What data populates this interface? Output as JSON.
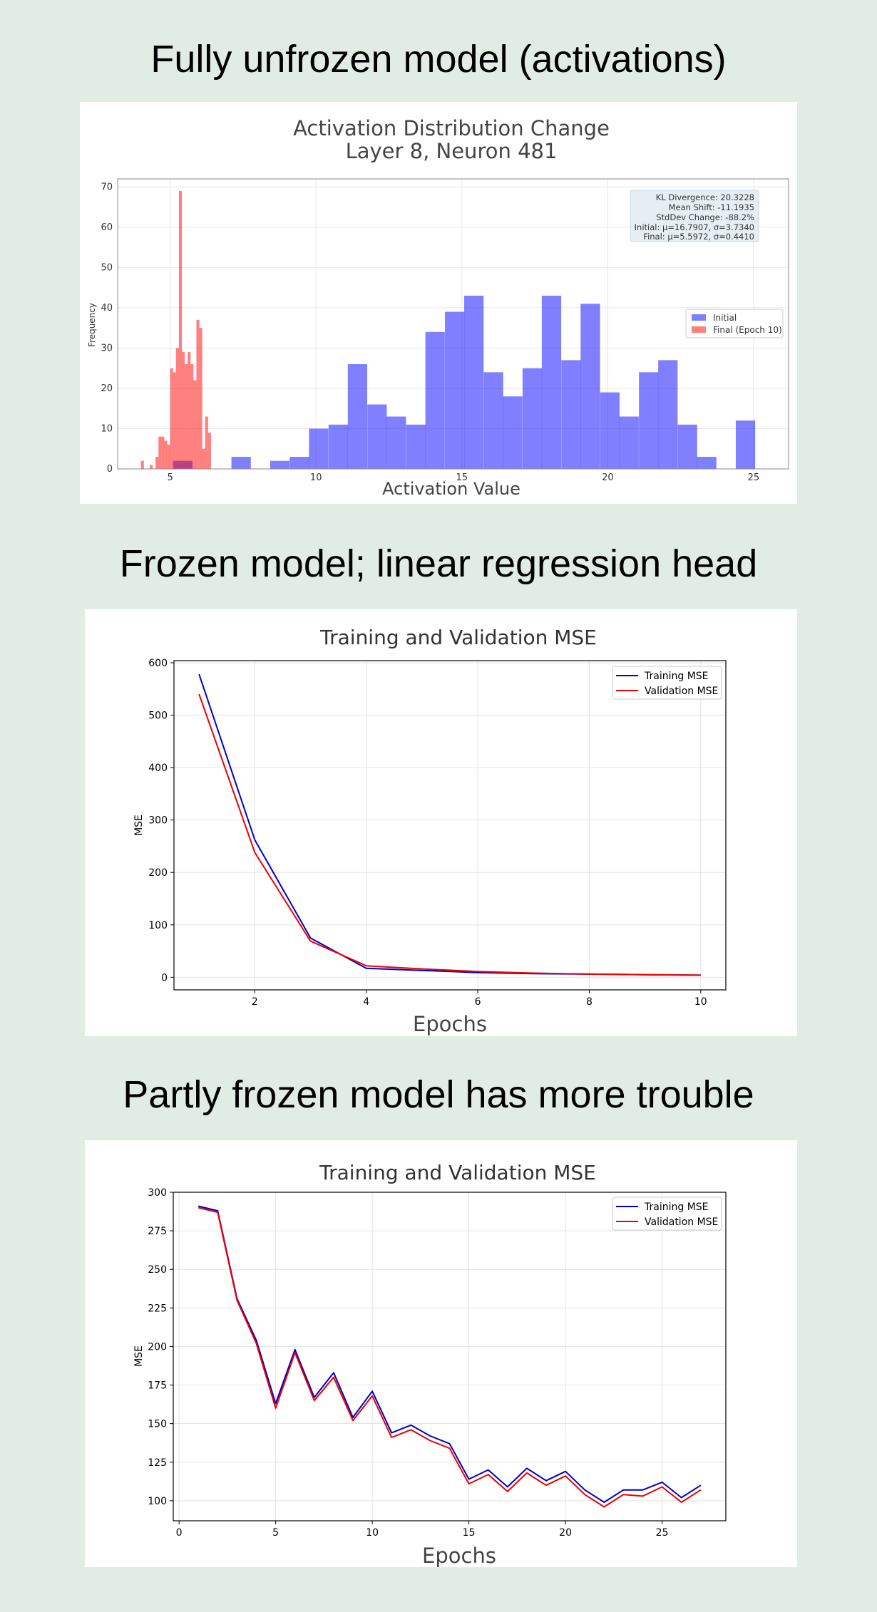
{
  "sections": [
    {
      "title": "Fully unfrozen model (activations)"
    },
    {
      "title": "Frozen model; linear regression head"
    },
    {
      "title": "Partly frozen model has more trouble"
    }
  ],
  "chart_data": [
    {
      "type": "bar",
      "title": "Activation Distribution Change",
      "subtitle": "Layer 8, Neuron 481",
      "xlabel": "Activation Value",
      "ylabel": "Frequency",
      "xlim": [
        3.2,
        26.2
      ],
      "ylim": [
        0,
        72
      ],
      "xticks": [
        5,
        10,
        15,
        20,
        25
      ],
      "yticks": [
        0,
        10,
        20,
        30,
        40,
        50,
        60,
        70
      ],
      "grid": true,
      "legend_position": "center-right",
      "stats_box": [
        "KL Divergence: 20.3228",
        "Mean Shift: -11.1935",
        "StdDev Change: -88.2%",
        "Initial: μ=16.7907, σ=3.7340",
        "Final: μ=5.5972, σ=0.4410"
      ],
      "series": [
        {
          "name": "Initial",
          "color": "#0000ff",
          "bin_width": 0.665,
          "bins": [
            {
              "x": 5.1,
              "y": 2
            },
            {
              "x": 7.1,
              "y": 3
            },
            {
              "x": 8.43,
              "y": 2
            },
            {
              "x": 9.1,
              "y": 3
            },
            {
              "x": 9.76,
              "y": 10
            },
            {
              "x": 10.43,
              "y": 11
            },
            {
              "x": 11.09,
              "y": 26
            },
            {
              "x": 11.76,
              "y": 16
            },
            {
              "x": 12.42,
              "y": 13
            },
            {
              "x": 13.09,
              "y": 11
            },
            {
              "x": 13.75,
              "y": 34
            },
            {
              "x": 14.42,
              "y": 39
            },
            {
              "x": 15.08,
              "y": 43
            },
            {
              "x": 15.75,
              "y": 24
            },
            {
              "x": 16.41,
              "y": 18
            },
            {
              "x": 17.08,
              "y": 25
            },
            {
              "x": 17.74,
              "y": 43
            },
            {
              "x": 18.41,
              "y": 27
            },
            {
              "x": 19.07,
              "y": 41
            },
            {
              "x": 19.74,
              "y": 19
            },
            {
              "x": 20.4,
              "y": 13
            },
            {
              "x": 21.07,
              "y": 24
            },
            {
              "x": 21.73,
              "y": 27
            },
            {
              "x": 22.4,
              "y": 11
            },
            {
              "x": 23.06,
              "y": 3
            },
            {
              "x": 24.39,
              "y": 12
            }
          ]
        },
        {
          "name": "Final (Epoch 10)",
          "color": "#ff0000",
          "bin_width": 0.1,
          "bins": [
            {
              "x": 4.0,
              "y": 2
            },
            {
              "x": 4.3,
              "y": 1
            },
            {
              "x": 4.5,
              "y": 3
            },
            {
              "x": 4.6,
              "y": 8
            },
            {
              "x": 4.7,
              "y": 8
            },
            {
              "x": 4.8,
              "y": 7
            },
            {
              "x": 4.9,
              "y": 6
            },
            {
              "x": 5.0,
              "y": 25
            },
            {
              "x": 5.1,
              "y": 24
            },
            {
              "x": 5.2,
              "y": 30
            },
            {
              "x": 5.3,
              "y": 69
            },
            {
              "x": 5.4,
              "y": 29
            },
            {
              "x": 5.5,
              "y": 26
            },
            {
              "x": 5.6,
              "y": 29
            },
            {
              "x": 5.7,
              "y": 26
            },
            {
              "x": 5.8,
              "y": 22
            },
            {
              "x": 5.9,
              "y": 37
            },
            {
              "x": 6.0,
              "y": 35
            },
            {
              "x": 6.1,
              "y": 5
            },
            {
              "x": 6.2,
              "y": 13
            },
            {
              "x": 6.3,
              "y": 9
            }
          ]
        }
      ]
    },
    {
      "type": "line",
      "title": "Training and Validation MSE",
      "xlabel": "Epochs",
      "ylabel": "MSE",
      "xlim": [
        0.55,
        10.45
      ],
      "ylim": [
        -24,
        604
      ],
      "xticks": [
        2,
        4,
        6,
        8,
        10
      ],
      "yticks": [
        0,
        100,
        200,
        300,
        400,
        500,
        600
      ],
      "grid": true,
      "legend_position": "top-right",
      "x": [
        1,
        2,
        3,
        4,
        5,
        6,
        7,
        8,
        9,
        10
      ],
      "series": [
        {
          "name": "Training MSE",
          "color": "#0000cc",
          "values": [
            578,
            262,
            75,
            17,
            13,
            9,
            7,
            6,
            5,
            4
          ]
        },
        {
          "name": "Validation MSE",
          "color": "#ee0000",
          "values": [
            540,
            238,
            69,
            22,
            16,
            11,
            8,
            6,
            5,
            4
          ]
        }
      ]
    },
    {
      "type": "line",
      "title": "Training and Validation MSE",
      "xlabel": "Epochs",
      "ylabel": "MSE",
      "xlim": [
        -0.3,
        28.3
      ],
      "ylim": [
        87,
        300
      ],
      "xticks": [
        0,
        5,
        10,
        15,
        20,
        25
      ],
      "yticks": [
        100,
        125,
        150,
        175,
        200,
        225,
        250,
        275,
        300
      ],
      "grid": true,
      "legend_position": "top-right",
      "x": [
        1,
        2,
        3,
        4,
        5,
        6,
        7,
        8,
        9,
        10,
        11,
        12,
        13,
        14,
        15,
        16,
        17,
        18,
        19,
        20,
        21,
        22,
        23,
        24,
        25,
        26,
        27
      ],
      "series": [
        {
          "name": "Training MSE",
          "color": "#0000cc",
          "values": [
            291,
            288,
            231,
            204,
            163,
            198,
            167,
            183,
            154,
            171,
            144,
            149,
            142,
            137,
            114,
            120,
            109,
            121,
            113,
            119,
            107,
            99,
            107,
            107,
            112,
            102,
            110
          ]
        },
        {
          "name": "Validation MSE",
          "color": "#ee0000",
          "values": [
            290,
            287,
            230,
            202,
            160,
            196,
            165,
            180,
            152,
            168,
            141,
            146,
            139,
            134,
            111,
            117,
            106,
            118,
            110,
            116,
            104,
            96,
            104,
            103,
            109,
            99,
            107
          ]
        }
      ]
    }
  ]
}
